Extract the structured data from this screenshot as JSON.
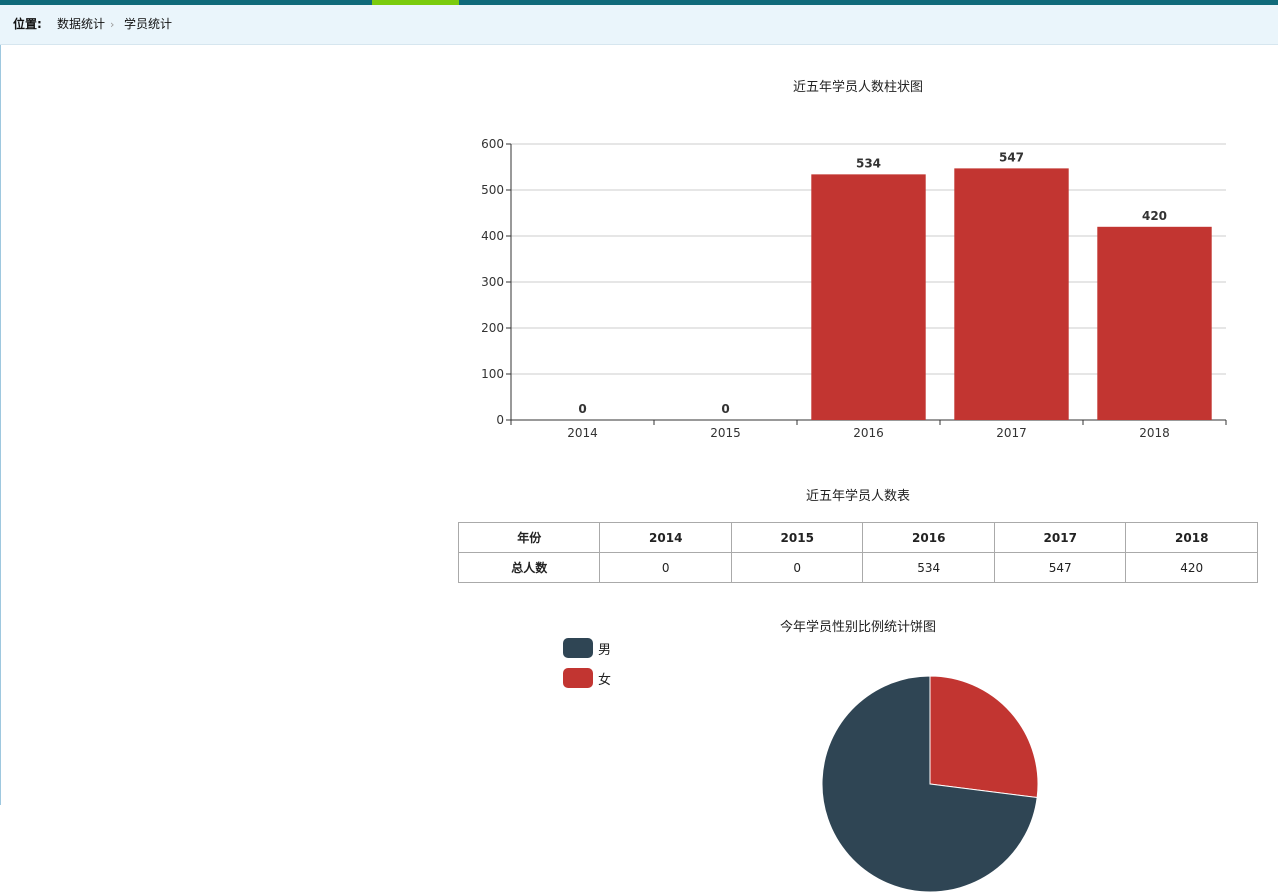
{
  "breadcrumb": {
    "lead": "位置:",
    "items": [
      "数据统计",
      "学员统计"
    ]
  },
  "colors": {
    "bar": "#c23531",
    "male": "#2f4554",
    "female": "#c23531",
    "topbar": "#0f6a7a",
    "topbar_accent": "#7acb0d"
  },
  "bar_chart": {
    "title": "近五年学员人数柱状图"
  },
  "table": {
    "title": "近五年学员人数表",
    "header_label": "年份",
    "years": [
      "2014",
      "2015",
      "2016",
      "2017",
      "2018"
    ],
    "row_label": "总人数",
    "values": [
      "0",
      "0",
      "534",
      "547",
      "420"
    ]
  },
  "pie_chart": {
    "title": "今年学员性别比例统计饼图",
    "legend": [
      {
        "label": "男",
        "icon": "legend-swatch",
        "color": "#2f4554"
      },
      {
        "label": "女",
        "icon": "legend-swatch",
        "color": "#c23531"
      }
    ]
  },
  "chart_data": [
    {
      "type": "bar",
      "title": "近五年学员人数柱状图",
      "categories": [
        "2014",
        "2015",
        "2016",
        "2017",
        "2018"
      ],
      "values": [
        0,
        0,
        534,
        547,
        420
      ],
      "ylim": [
        0,
        600
      ],
      "yticks": [
        0,
        100,
        200,
        300,
        400,
        500,
        600
      ],
      "grid": true,
      "data_labels": true
    },
    {
      "type": "pie",
      "title": "今年学员性别比例统计饼图",
      "labels": [
        "男",
        "女"
      ],
      "values": [
        0.73,
        0.27
      ],
      "legend": "top-left"
    }
  ]
}
